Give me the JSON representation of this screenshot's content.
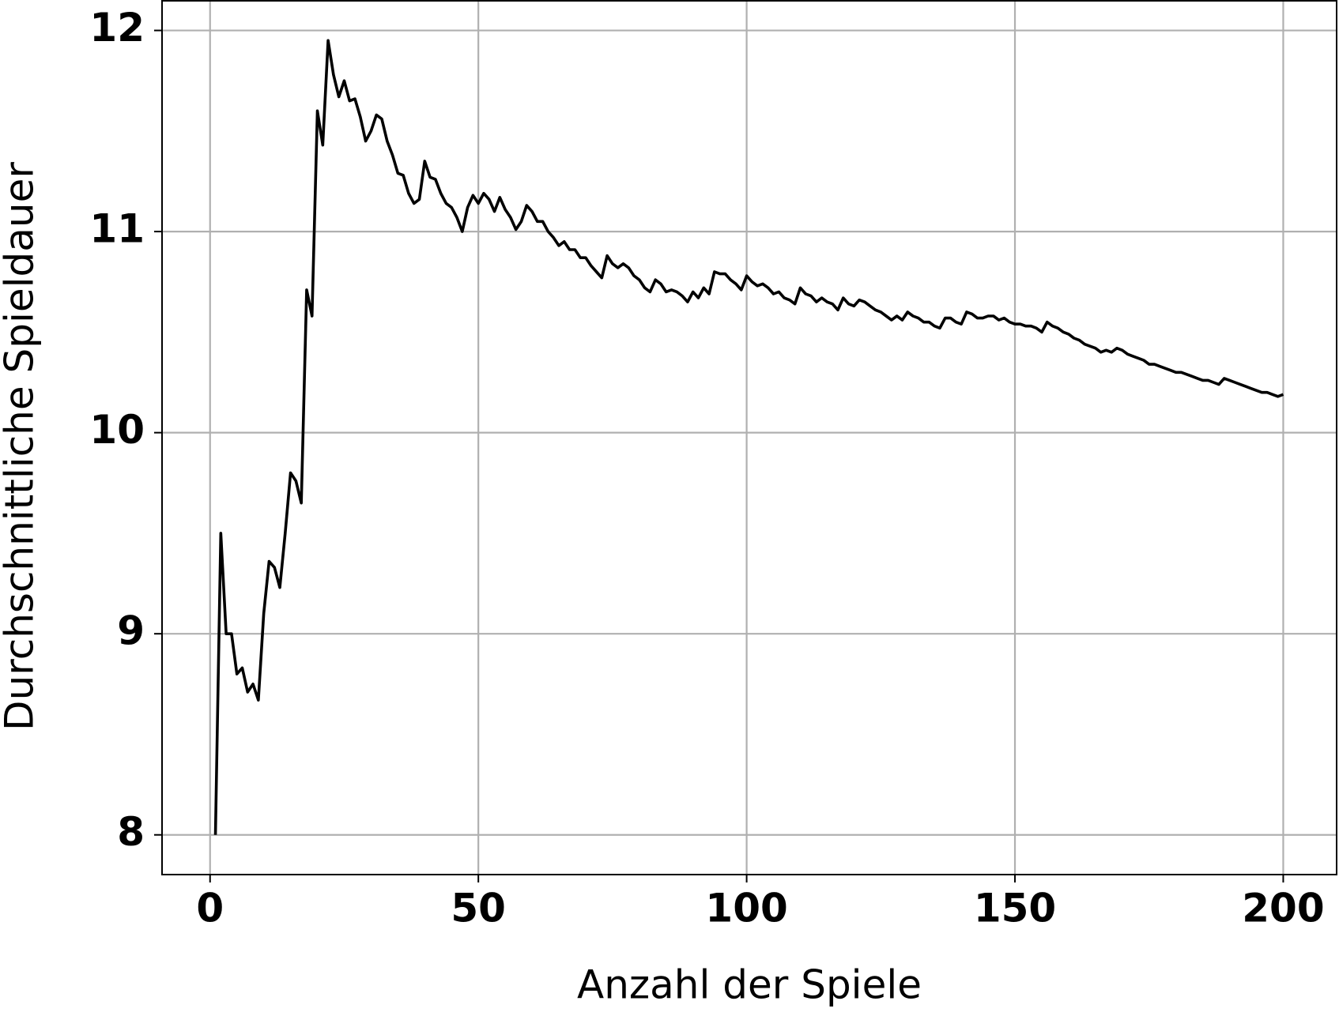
{
  "chart_data": {
    "type": "line",
    "xlabel": "Anzahl der Spiele",
    "ylabel": "Durchschnittliche Spieldauer",
    "x": [
      1,
      2,
      3,
      4,
      5,
      6,
      7,
      8,
      9,
      10,
      11,
      12,
      13,
      14,
      15,
      16,
      17,
      18,
      19,
      20,
      21,
      22,
      23,
      24,
      25,
      26,
      27,
      28,
      29,
      30,
      31,
      32,
      33,
      34,
      35,
      36,
      37,
      38,
      39,
      40,
      41,
      42,
      43,
      44,
      45,
      46,
      47,
      48,
      49,
      50,
      51,
      52,
      53,
      54,
      55,
      56,
      57,
      58,
      59,
      60,
      61,
      62,
      63,
      64,
      65,
      66,
      67,
      68,
      69,
      70,
      71,
      72,
      73,
      74,
      75,
      76,
      77,
      78,
      79,
      80,
      81,
      82,
      83,
      84,
      85,
      86,
      87,
      88,
      89,
      90,
      91,
      92,
      93,
      94,
      95,
      96,
      97,
      98,
      99,
      100,
      101,
      102,
      103,
      104,
      105,
      106,
      107,
      108,
      109,
      110,
      111,
      112,
      113,
      114,
      115,
      116,
      117,
      118,
      119,
      120,
      121,
      122,
      123,
      124,
      125,
      126,
      127,
      128,
      129,
      130,
      131,
      132,
      133,
      134,
      135,
      136,
      137,
      138,
      139,
      140,
      141,
      142,
      143,
      144,
      145,
      146,
      147,
      148,
      149,
      150,
      151,
      152,
      153,
      154,
      155,
      156,
      157,
      158,
      159,
      160,
      161,
      162,
      163,
      164,
      165,
      166,
      167,
      168,
      169,
      170,
      171,
      172,
      173,
      174,
      175,
      176,
      177,
      178,
      179,
      180,
      181,
      182,
      183,
      184,
      185,
      186,
      187,
      188,
      189,
      190,
      191,
      192,
      193,
      194,
      195,
      196,
      197,
      198,
      199,
      200
    ],
    "series": [
      {
        "color": "#000000",
        "values": [
          8.0,
          9.5,
          9.0,
          9.0,
          8.8,
          8.83,
          8.71,
          8.75,
          8.67,
          9.1,
          9.36,
          9.33,
          9.23,
          9.5,
          9.8,
          9.76,
          9.65,
          10.71,
          10.58,
          11.6,
          11.43,
          11.95,
          11.78,
          11.67,
          11.75,
          11.65,
          11.66,
          11.57,
          11.45,
          11.5,
          11.58,
          11.56,
          11.45,
          11.38,
          11.29,
          11.28,
          11.19,
          11.14,
          11.16,
          11.35,
          11.27,
          11.26,
          11.19,
          11.14,
          11.12,
          11.07,
          11.0,
          11.12,
          11.18,
          11.14,
          11.19,
          11.16,
          11.1,
          11.17,
          11.11,
          11.07,
          11.01,
          11.05,
          11.13,
          11.1,
          11.05,
          11.05,
          11.0,
          10.97,
          10.93,
          10.95,
          10.91,
          10.91,
          10.87,
          10.87,
          10.83,
          10.8,
          10.77,
          10.88,
          10.84,
          10.82,
          10.84,
          10.82,
          10.78,
          10.76,
          10.72,
          10.7,
          10.76,
          10.74,
          10.7,
          10.71,
          10.7,
          10.68,
          10.65,
          10.7,
          10.67,
          10.72,
          10.69,
          10.8,
          10.79,
          10.79,
          10.76,
          10.74,
          10.71,
          10.78,
          10.75,
          10.73,
          10.74,
          10.72,
          10.69,
          10.7,
          10.67,
          10.66,
          10.64,
          10.72,
          10.69,
          10.68,
          10.65,
          10.67,
          10.65,
          10.64,
          10.61,
          10.67,
          10.64,
          10.63,
          10.66,
          10.65,
          10.63,
          10.61,
          10.6,
          10.58,
          10.56,
          10.58,
          10.56,
          10.6,
          10.58,
          10.57,
          10.55,
          10.55,
          10.53,
          10.52,
          10.57,
          10.57,
          10.55,
          10.54,
          10.6,
          10.59,
          10.57,
          10.57,
          10.58,
          10.58,
          10.56,
          10.57,
          10.55,
          10.54,
          10.54,
          10.53,
          10.53,
          10.52,
          10.5,
          10.55,
          10.53,
          10.52,
          10.5,
          10.49,
          10.47,
          10.46,
          10.44,
          10.43,
          10.42,
          10.4,
          10.41,
          10.4,
          10.42,
          10.41,
          10.39,
          10.38,
          10.37,
          10.36,
          10.34,
          10.34,
          10.33,
          10.32,
          10.31,
          10.3,
          10.3,
          10.29,
          10.28,
          10.27,
          10.26,
          10.26,
          10.25,
          10.24,
          10.27,
          10.26,
          10.25,
          10.24,
          10.23,
          10.22,
          10.21,
          10.2,
          10.2,
          10.19,
          10.18,
          10.19
        ]
      }
    ],
    "xlim": [
      -8.95,
      209.95
    ],
    "xticks": [
      0,
      50,
      100,
      150,
      200
    ],
    "ylim": [
      7.8025,
      12.1475
    ],
    "yticks": [
      8,
      9,
      10,
      11,
      12
    ],
    "grid": true
  }
}
